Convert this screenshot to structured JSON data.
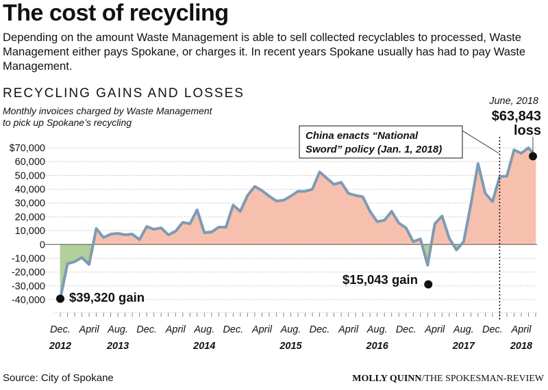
{
  "header": {
    "title": "The cost of recycling",
    "intro": "Depending on the amount Waste Management is able to sell collected recyclables to processed, Waste Management either pays Spokane, or charges it. In recent years Spokane usually has had to pay Waste Management."
  },
  "footer": {
    "source": "Source: City of Spokane",
    "credit_name": "MOLLY QUINN",
    "credit_org": "/THE SPOKESMAN-REVIEW"
  },
  "colors": {
    "line": "#7d9bb3",
    "gain_fill": "#b3cf9a",
    "loss_fill": "#f7c0ae"
  },
  "chart_data": {
    "type": "area",
    "title": "RECYCLING GAINS AND LOSSES",
    "subtitle_lines": [
      "Monthly invoices charged by Waste Management",
      "to pick up Spokane’s recycling"
    ],
    "ylim": [
      -45000,
      72000
    ],
    "yticks": [
      {
        "value": 70000,
        "label": "$70,000"
      },
      {
        "value": 60000,
        "label": "60,000"
      },
      {
        "value": 50000,
        "label": "50,000"
      },
      {
        "value": 40000,
        "label": "40,000"
      },
      {
        "value": 30000,
        "label": "30,000"
      },
      {
        "value": 20000,
        "label": "20,000"
      },
      {
        "value": 10000,
        "label": "10,000"
      },
      {
        "value": 0,
        "label": "0"
      },
      {
        "value": -10000,
        "label": "-10,000"
      },
      {
        "value": -20000,
        "label": "-20,000"
      },
      {
        "value": -30000,
        "label": "-30,000"
      },
      {
        "value": -40000,
        "label": "-40,000"
      }
    ],
    "x": [
      "2012-12",
      "2013-01",
      "2013-02",
      "2013-03",
      "2013-04",
      "2013-05",
      "2013-06",
      "2013-07",
      "2013-08",
      "2013-09",
      "2013-10",
      "2013-11",
      "2013-12",
      "2014-01",
      "2014-02",
      "2014-03",
      "2014-04",
      "2014-05",
      "2014-06",
      "2014-07",
      "2014-08",
      "2014-09",
      "2014-10",
      "2014-11",
      "2014-12",
      "2015-01",
      "2015-02",
      "2015-03",
      "2015-04",
      "2015-05",
      "2015-06",
      "2015-07",
      "2015-08",
      "2015-09",
      "2015-10",
      "2015-11",
      "2015-12",
      "2016-01",
      "2016-02",
      "2016-03",
      "2016-04",
      "2016-05",
      "2016-06",
      "2016-07",
      "2016-08",
      "2016-09",
      "2016-10",
      "2016-11",
      "2016-12",
      "2017-01",
      "2017-02",
      "2017-03",
      "2017-04",
      "2017-05",
      "2017-06",
      "2017-07",
      "2017-08",
      "2017-09",
      "2017-10",
      "2017-11",
      "2017-12",
      "2018-01",
      "2018-02",
      "2018-03",
      "2018-04",
      "2018-05",
      "2018-06"
    ],
    "values": [
      -39320,
      -14000,
      -12500,
      -9500,
      -14500,
      11500,
      5000,
      7500,
      8000,
      7000,
      7500,
      3500,
      13000,
      11000,
      12000,
      7000,
      9500,
      16000,
      15000,
      25000,
      8500,
      9000,
      12500,
      12500,
      28500,
      24000,
      35500,
      42000,
      39000,
      35000,
      31500,
      32000,
      35000,
      38500,
      38500,
      40000,
      52500,
      48000,
      43500,
      45000,
      37000,
      35500,
      34500,
      24000,
      16500,
      17500,
      24000,
      15500,
      12000,
      2000,
      4000,
      -15043,
      15000,
      20500,
      4500,
      -4000,
      2000,
      29000,
      58500,
      37000,
      31000,
      49000,
      49500,
      68500,
      66000,
      70000,
      63843
    ],
    "xticks": [
      {
        "x": "2012-12",
        "month": "Dec.",
        "year": "2012"
      },
      {
        "x": "2013-04",
        "month": "April"
      },
      {
        "x": "2013-08",
        "month": "Aug.",
        "year": "2013"
      },
      {
        "x": "2013-12",
        "month": "Dec."
      },
      {
        "x": "2014-04",
        "month": "April"
      },
      {
        "x": "2014-08",
        "month": "Aug.",
        "year": "2014"
      },
      {
        "x": "2014-12",
        "month": "Dec."
      },
      {
        "x": "2015-04",
        "month": "April"
      },
      {
        "x": "2015-08",
        "month": "Aug.",
        "year": "2015"
      },
      {
        "x": "2015-12",
        "month": "Dec."
      },
      {
        "x": "2016-04",
        "month": "April"
      },
      {
        "x": "2016-08",
        "month": "Aug.",
        "year": "2016"
      },
      {
        "x": "2016-12",
        "month": "Dec."
      },
      {
        "x": "2017-04",
        "month": "April"
      },
      {
        "x": "2017-08",
        "month": "Aug.",
        "year": "2017"
      },
      {
        "x": "2017-12",
        "month": "Dec."
      },
      {
        "x": "2018-04",
        "month": "April",
        "year": "2018"
      }
    ],
    "annotations": {
      "low_2012": {
        "x": "2012-12",
        "value": -39320,
        "label": "$39,320 gain"
      },
      "low_2017": {
        "x": "2017-03",
        "value": -15043,
        "label": "$15,043 gain"
      },
      "high_2018": {
        "x": "2018-06",
        "value": 63843,
        "date_label": "June, 2018",
        "amount_label": "$63,843",
        "suffix_label": "loss"
      },
      "policy": {
        "x": "2018-01",
        "label_lines": [
          "China enacts “National",
          "Sword” policy (Jan. 1, 2018)"
        ]
      }
    }
  }
}
